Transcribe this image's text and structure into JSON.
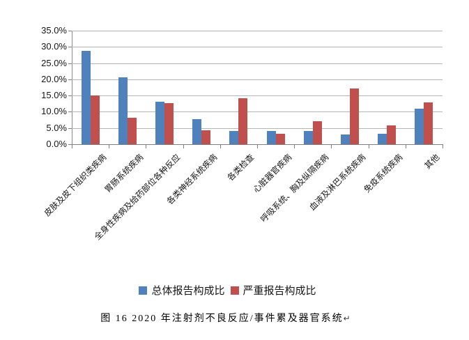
{
  "chart_data": {
    "type": "bar",
    "title": "",
    "categories": [
      "皮肤及皮下组织类疾病",
      "胃肠系统疾病",
      "全身性疾病及给药部位各种反应",
      "各类神经系统疾病",
      "各类检查",
      "心脏器官疾病",
      "呼吸系统、胸及纵隔疾病",
      "血液及淋巴系统疾病",
      "免疫系统疾病",
      "其他"
    ],
    "series": [
      {
        "key": "overall",
        "name": "总体报告构成比",
        "color": "#4F81BD",
        "values": [
          28.8,
          20.6,
          13.1,
          7.8,
          4.1,
          4.1,
          4.0,
          3.1,
          3.3,
          11.0
        ]
      },
      {
        "key": "serious",
        "name": "严重报告构成比",
        "color": "#C0504D",
        "values": [
          15.0,
          8.2,
          12.7,
          4.3,
          14.2,
          3.3,
          7.0,
          17.1,
          5.9,
          12.9
        ]
      }
    ],
    "xlabel": "",
    "ylabel": "",
    "ylim": [
      0,
      35
    ],
    "ytick_step": 5,
    "yticks": [
      {
        "value": 0,
        "label": "0.0%"
      },
      {
        "value": 5,
        "label": "5.0%"
      },
      {
        "value": 10,
        "label": "10.0%"
      },
      {
        "value": 15,
        "label": "15.0%"
      },
      {
        "value": 20,
        "label": "20.0%"
      },
      {
        "value": 25,
        "label": "25.0%"
      },
      {
        "value": 30,
        "label": "30.0%"
      },
      {
        "value": 35,
        "label": "35.0%"
      }
    ],
    "grid": "horizontal",
    "legend_position": "bottom"
  },
  "caption": {
    "text": "图 16  2020 年注射剂不良反应/事件累及器官系统",
    "paragraph_mark": "↵"
  }
}
